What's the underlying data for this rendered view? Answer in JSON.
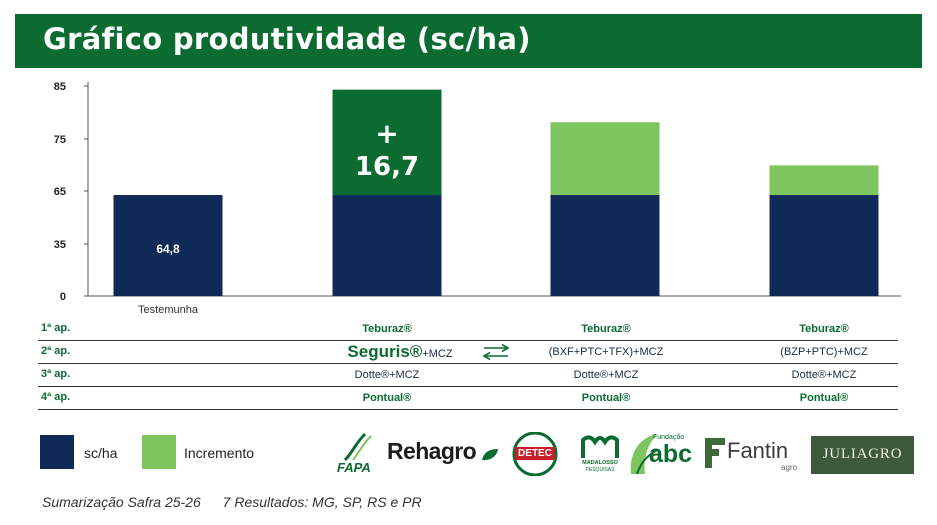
{
  "title": "Gráfico produtividade (sc/ha)",
  "chart_data": {
    "type": "stacked-bar",
    "categories": [
      "Testemunha",
      "",
      "",
      ""
    ],
    "y_ticks": [
      "0",
      "35",
      "65",
      "75",
      "85"
    ],
    "series": [
      {
        "name": "sc/ha",
        "color": "#0f2a56",
        "values": [
          64.8,
          64.8,
          64.8,
          64.8
        ]
      },
      {
        "name": "Incremento",
        "color": "#7ec45f",
        "values": [
          0,
          16.7,
          13.5,
          5.5
        ]
      }
    ],
    "annotations": [
      {
        "bar": 0,
        "text": "64,8"
      },
      {
        "bar": 1,
        "plus": "+",
        "text": "16,7",
        "highlight_color": "#0b6b30"
      }
    ]
  },
  "table": {
    "rows": [
      {
        "label": "1ª ap.",
        "cells": [
          "Teburaz®",
          "Teburaz®",
          "Teburaz®"
        ]
      },
      {
        "label": "2ª ap.",
        "cells": [
          "",
          "(BXF+PTC+TFX)+MCZ",
          "(BZP+PTC)+MCZ"
        ],
        "highlight": "Seguris®",
        "highlight_suffix": "+MCZ"
      },
      {
        "label": "3ª ap.",
        "cells": [
          "Dotte®+MCZ",
          "Dotte®+MCZ",
          "Dotte®+MCZ"
        ]
      },
      {
        "label": "4ª ap.",
        "cells": [
          "Pontual®",
          "Pontual®",
          "Pontual®"
        ]
      }
    ],
    "swap_icon": "swap-arrows-icon"
  },
  "legend": [
    {
      "label": "sc/ha",
      "color": "#0f2a56"
    },
    {
      "label": "Incremento",
      "color": "#7ec45f"
    }
  ],
  "logos": {
    "fapa": "FAPA",
    "rehagro": "Rehagro",
    "detec": "DETEC",
    "madalosso": "MADALOSSO",
    "madalosso_sub": "PESQUISAS",
    "abc_top": "Fundação",
    "abc": "abc",
    "fantin": "Fantin",
    "fantin_sub": "agro",
    "juliagro": "JULIAGRO"
  },
  "footer": {
    "left": "Sumarização Safra 25-26",
    "right": "7 Resultados: MG, SP, RS e PR"
  }
}
